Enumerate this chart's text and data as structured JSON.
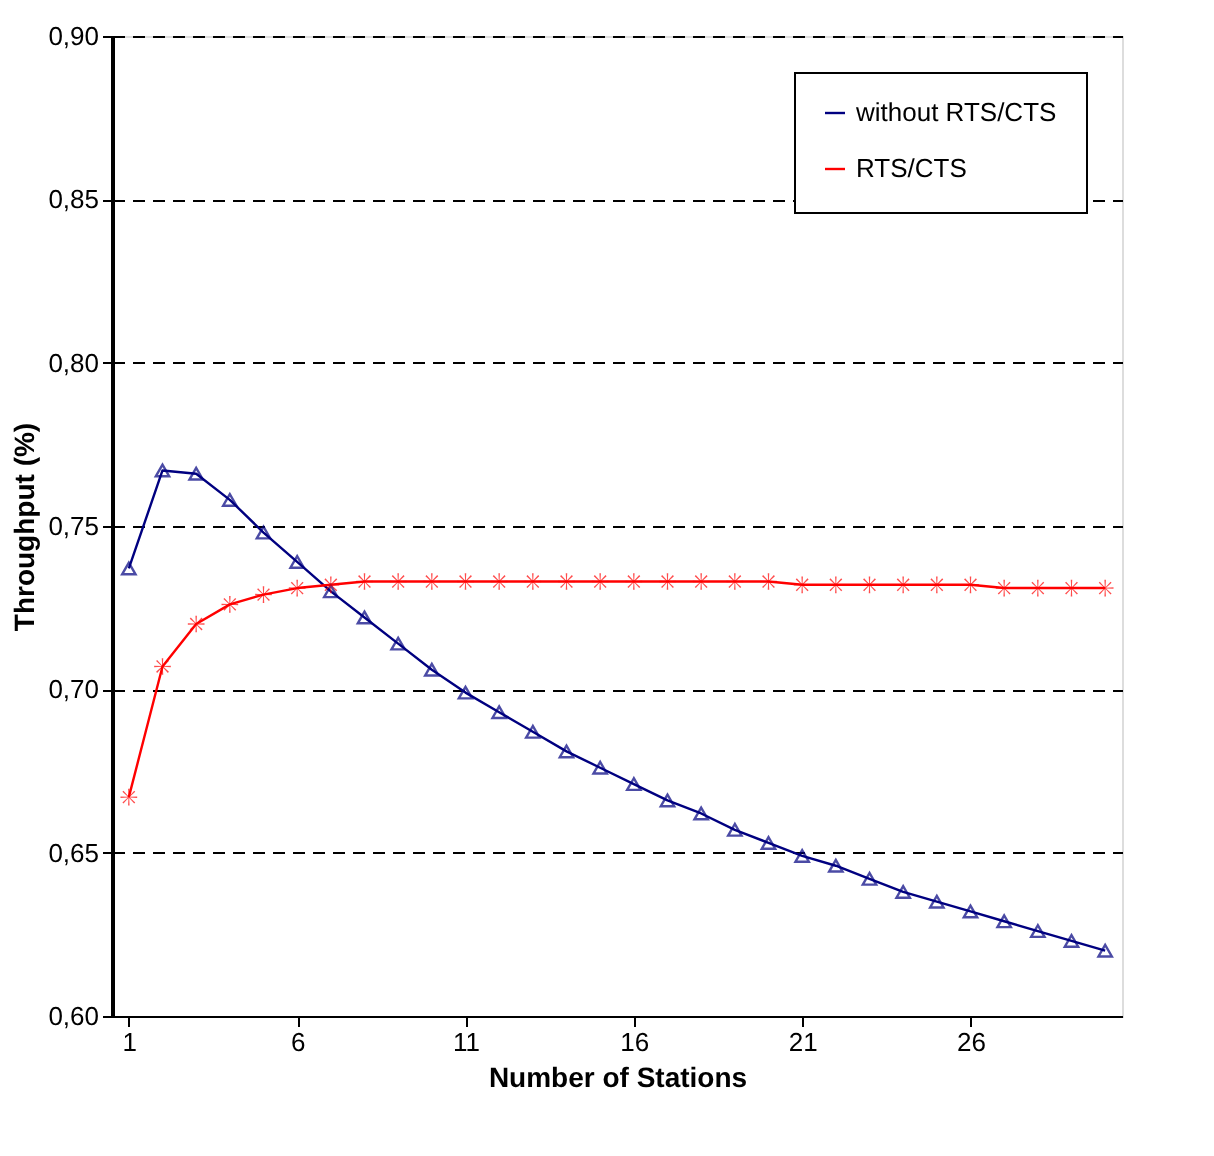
{
  "chart_data": {
    "type": "line",
    "xlabel": "Number of Stations",
    "ylabel": "Throughput (%)",
    "x": [
      1,
      2,
      3,
      4,
      5,
      6,
      7,
      8,
      9,
      10,
      11,
      12,
      13,
      14,
      15,
      16,
      17,
      18,
      19,
      20,
      21,
      22,
      23,
      24,
      25,
      26,
      27,
      28,
      29,
      30
    ],
    "series": [
      {
        "name": "without RTS/CTS",
        "color": "#000080",
        "marker": "triangle",
        "values": [
          0.737,
          0.767,
          0.766,
          0.758,
          0.748,
          0.739,
          0.73,
          0.722,
          0.714,
          0.706,
          0.699,
          0.693,
          0.687,
          0.681,
          0.676,
          0.671,
          0.666,
          0.662,
          0.657,
          0.653,
          0.649,
          0.646,
          0.642,
          0.638,
          0.635,
          0.632,
          0.629,
          0.626,
          0.623,
          0.62
        ]
      },
      {
        "name": "RTS/CTS",
        "color": "#ff0000",
        "marker": "star",
        "values": [
          0.667,
          0.707,
          0.72,
          0.726,
          0.729,
          0.731,
          0.732,
          0.733,
          0.733,
          0.733,
          0.733,
          0.733,
          0.733,
          0.733,
          0.733,
          0.733,
          0.733,
          0.733,
          0.733,
          0.733,
          0.732,
          0.732,
          0.732,
          0.732,
          0.732,
          0.732,
          0.731,
          0.731,
          0.731,
          0.731
        ]
      }
    ],
    "xlim": [
      0.5,
      30.5
    ],
    "xticks": [
      1,
      6,
      11,
      16,
      21,
      26
    ],
    "ylim": [
      0.6,
      0.9
    ],
    "yticks": [
      {
        "value": 0.6,
        "label": "0,60"
      },
      {
        "value": 0.65,
        "label": "0,65"
      },
      {
        "value": 0.7,
        "label": "0,70"
      },
      {
        "value": 0.75,
        "label": "0,75"
      },
      {
        "value": 0.8,
        "label": "0,80"
      },
      {
        "value": 0.85,
        "label": "0,85"
      },
      {
        "value": 0.9,
        "label": "0,90"
      }
    ],
    "grid": "y",
    "line_style": "solid",
    "legend": "top right"
  }
}
